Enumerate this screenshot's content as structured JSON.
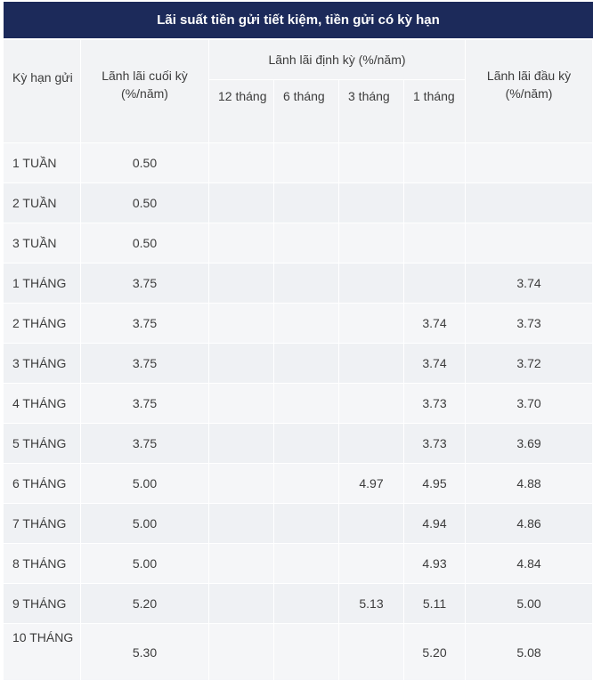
{
  "title": "Lãi suất tiền gửi tiết kiệm, tiền gửi có kỳ hạn",
  "headers": {
    "ky_han": "Kỳ hạn gửi",
    "cuoi_ky": "Lãnh lãi cuối kỳ (%/năm)",
    "dinh_ky": "Lãnh lãi định kỳ (%/năm)",
    "dinh_ky_sub": [
      "12 tháng",
      "6 tháng",
      "3 tháng",
      "1 tháng"
    ],
    "dau_ky": "Lãnh lãi đầu kỳ (%/năm)"
  },
  "rows": [
    {
      "term": "1 TUẦN",
      "cuoi_ky": "0.50",
      "m12": "",
      "m6": "",
      "m3": "",
      "m1": "",
      "dau_ky": ""
    },
    {
      "term": "2 TUẦN",
      "cuoi_ky": "0.50",
      "m12": "",
      "m6": "",
      "m3": "",
      "m1": "",
      "dau_ky": ""
    },
    {
      "term": "3 TUẦN",
      "cuoi_ky": "0.50",
      "m12": "",
      "m6": "",
      "m3": "",
      "m1": "",
      "dau_ky": ""
    },
    {
      "term": "1 THÁNG",
      "cuoi_ky": "3.75",
      "m12": "",
      "m6": "",
      "m3": "",
      "m1": "",
      "dau_ky": "3.74"
    },
    {
      "term": "2 THÁNG",
      "cuoi_ky": "3.75",
      "m12": "",
      "m6": "",
      "m3": "",
      "m1": "3.74",
      "dau_ky": "3.73"
    },
    {
      "term": "3 THÁNG",
      "cuoi_ky": "3.75",
      "m12": "",
      "m6": "",
      "m3": "",
      "m1": "3.74",
      "dau_ky": "3.72"
    },
    {
      "term": "4 THÁNG",
      "cuoi_ky": "3.75",
      "m12": "",
      "m6": "",
      "m3": "",
      "m1": "3.73",
      "dau_ky": "3.70"
    },
    {
      "term": "5 THÁNG",
      "cuoi_ky": "3.75",
      "m12": "",
      "m6": "",
      "m3": "",
      "m1": "3.73",
      "dau_ky": "3.69"
    },
    {
      "term": "6 THÁNG",
      "cuoi_ky": "5.00",
      "m12": "",
      "m6": "",
      "m3": "4.97",
      "m1": "4.95",
      "dau_ky": "4.88"
    },
    {
      "term": "7 THÁNG",
      "cuoi_ky": "5.00",
      "m12": "",
      "m6": "",
      "m3": "",
      "m1": "4.94",
      "dau_ky": "4.86"
    },
    {
      "term": "8 THÁNG",
      "cuoi_ky": "5.00",
      "m12": "",
      "m6": "",
      "m3": "",
      "m1": "4.93",
      "dau_ky": "4.84"
    },
    {
      "term": "9 THÁNG",
      "cuoi_ky": "5.20",
      "m12": "",
      "m6": "",
      "m3": "5.13",
      "m1": "5.11",
      "dau_ky": "5.00"
    },
    {
      "term": "10 THÁNG",
      "cuoi_ky": "5.30",
      "m12": "",
      "m6": "",
      "m3": "",
      "m1": "5.20",
      "dau_ky": "5.08"
    }
  ]
}
